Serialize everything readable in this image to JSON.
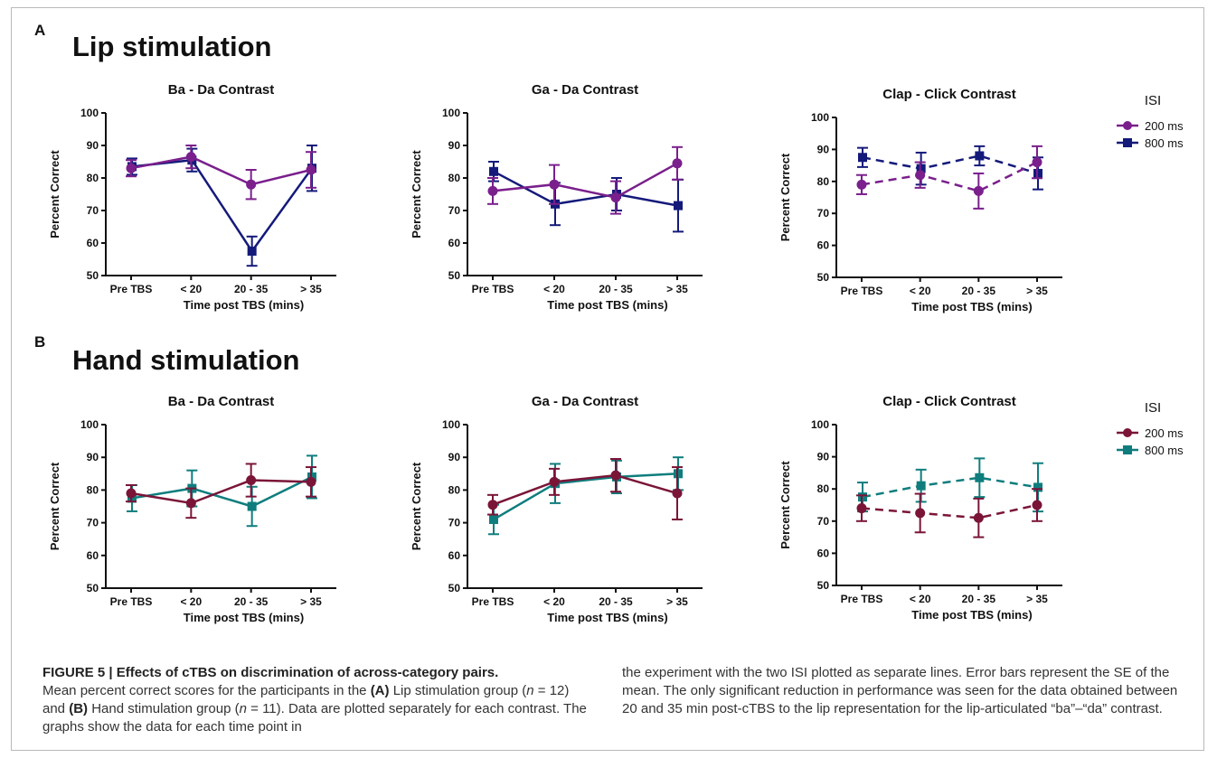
{
  "panels": [
    {
      "letter": "A",
      "title": "Lip stimulation",
      "colors": {
        "200 ms": "#7a1f8c",
        "800 ms": "#141a7a"
      },
      "legend_title": "ISI",
      "charts": [
        {
          "type": "line",
          "title": "Ba - Da Contrast",
          "xlabel": "Time post TBS (mins)",
          "ylabel": "Percent Correct",
          "categories": [
            "Pre TBS",
            "< 20",
            "20 - 35",
            "> 35"
          ],
          "ylim": [
            50,
            100
          ],
          "yticks": [
            50,
            60,
            70,
            80,
            90,
            100
          ],
          "dashed": false,
          "legend": null,
          "series": [
            {
              "name": "200 ms",
              "marker": "circle",
              "values": [
                83,
                86.5,
                78,
                82.5
              ],
              "err": [
                2.5,
                3.5,
                4.5,
                5.5
              ]
            },
            {
              "name": "800 ms",
              "marker": "square",
              "values": [
                83.5,
                85.5,
                57.5,
                83
              ],
              "err": [
                2.5,
                3.5,
                4.5,
                7
              ]
            }
          ]
        },
        {
          "type": "line",
          "title": "Ga - Da Contrast",
          "xlabel": "Time post TBS (mins)",
          "ylabel": "Percent Correct",
          "categories": [
            "Pre TBS",
            "< 20",
            "20 - 35",
            "> 35"
          ],
          "ylim": [
            50,
            100
          ],
          "yticks": [
            50,
            60,
            70,
            80,
            90,
            100
          ],
          "dashed": false,
          "legend": null,
          "series": [
            {
              "name": "200 ms",
              "marker": "circle",
              "values": [
                76,
                78,
                74,
                84.5
              ],
              "err": [
                4,
                6,
                5,
                5
              ]
            },
            {
              "name": "800 ms",
              "marker": "square",
              "values": [
                82,
                72,
                75,
                71.5
              ],
              "err": [
                3,
                6.5,
                5,
                8
              ]
            }
          ]
        },
        {
          "type": "line",
          "title": "Clap - Click Contrast",
          "xlabel": "Time post TBS (mins)",
          "ylabel": "Percent Correct",
          "categories": [
            "Pre TBS",
            "< 20",
            "20 - 35",
            "> 35"
          ],
          "ylim": [
            50,
            100
          ],
          "yticks": [
            50,
            60,
            70,
            80,
            90,
            100
          ],
          "dashed": true,
          "legend": "right",
          "series": [
            {
              "name": "200 ms",
              "marker": "circle",
              "values": [
                79,
                82,
                77,
                86
              ],
              "err": [
                3,
                4,
                5.5,
                5
              ]
            },
            {
              "name": "800 ms",
              "marker": "square",
              "values": [
                87.5,
                84,
                88,
                82.5
              ],
              "err": [
                3,
                5,
                3,
                5
              ]
            }
          ]
        }
      ]
    },
    {
      "letter": "B",
      "title": "Hand stimulation",
      "colors": {
        "200 ms": "#7a1538",
        "800 ms": "#0f7d7d"
      },
      "legend_title": "ISI",
      "charts": [
        {
          "type": "line",
          "title": "Ba - Da Contrast",
          "xlabel": "Time post TBS (mins)",
          "ylabel": "Percent Correct",
          "categories": [
            "Pre TBS",
            "< 20",
            "20 - 35",
            "> 35"
          ],
          "ylim": [
            50,
            100
          ],
          "yticks": [
            50,
            60,
            70,
            80,
            90,
            100
          ],
          "dashed": false,
          "legend": null,
          "series": [
            {
              "name": "200 ms",
              "marker": "circle",
              "values": [
                79,
                76,
                83,
                82.5
              ],
              "err": [
                2.5,
                4.5,
                5,
                4.5
              ]
            },
            {
              "name": "800 ms",
              "marker": "square",
              "values": [
                77.5,
                80.5,
                75,
                84
              ],
              "err": [
                4,
                5.5,
                6,
                6.5
              ]
            }
          ]
        },
        {
          "type": "line",
          "title": "Ga - Da Contrast",
          "xlabel": "Time post TBS (mins)",
          "ylabel": "Percent Correct",
          "categories": [
            "Pre TBS",
            "< 20",
            "20 - 35",
            "> 35"
          ],
          "ylim": [
            50,
            100
          ],
          "yticks": [
            50,
            60,
            70,
            80,
            90,
            100
          ],
          "dashed": false,
          "legend": null,
          "series": [
            {
              "name": "200 ms",
              "marker": "circle",
              "values": [
                75.5,
                82.5,
                84.5,
                79
              ],
              "err": [
                3,
                4,
                5,
                8
              ]
            },
            {
              "name": "800 ms",
              "marker": "square",
              "values": [
                71,
                82,
                84,
                85
              ],
              "err": [
                4.5,
                6,
                5,
                5
              ]
            }
          ]
        },
        {
          "type": "line",
          "title": "Clap - Click Contrast",
          "xlabel": "Time post TBS (mins)",
          "ylabel": "Percent Correct",
          "categories": [
            "Pre TBS",
            "< 20",
            "20 - 35",
            "> 35"
          ],
          "ylim": [
            50,
            100
          ],
          "yticks": [
            50,
            60,
            70,
            80,
            90,
            100
          ],
          "dashed": true,
          "legend": "right",
          "series": [
            {
              "name": "200 ms",
              "marker": "circle",
              "values": [
                74,
                72.5,
                71,
                75
              ],
              "err": [
                4,
                6,
                6,
                5
              ]
            },
            {
              "name": "800 ms",
              "marker": "square",
              "values": [
                77.5,
                81,
                83.5,
                80.5
              ],
              "err": [
                4.5,
                5,
                6,
                7.5
              ]
            }
          ]
        }
      ]
    }
  ],
  "caption": {
    "title": "FIGURE 5 | Effects of cTBS on discrimination of across-category pairs.",
    "text_1": "Mean percent correct scores for the participants in the",
    "ref_a": "(A)",
    "text_2": "Lip stimulation group (",
    "n_var_1": "n",
    "text_3": " = 12) and",
    "ref_b": "(B)",
    "text_4": "Hand stimulation group (",
    "n_var_2": "n",
    "text_5": " = 11). Data are plotted separately for each contrast. The graphs show the data for each time point in",
    "right": "the experiment with the two ISI plotted as separate lines. Error bars represent the SE of the mean. The only significant reduction in performance was seen for the data obtained between 20 and 35 min post-cTBS to the lip representation for the lip-articulated “ba”–“da” contrast."
  }
}
